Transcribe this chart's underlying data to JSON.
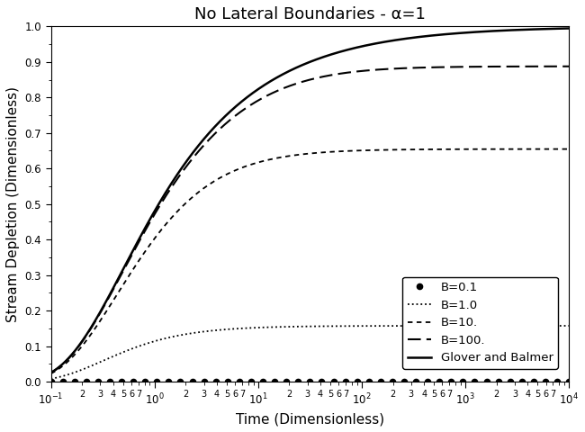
{
  "title": "No Lateral Boundaries - α=1",
  "xlabel": "Time (Dimensionless)",
  "ylabel": "Stream Depletion (Dimensionless)",
  "xlim_log": [
    -1,
    4
  ],
  "ylim": [
    0.0,
    1.0
  ],
  "legend_labels": [
    "B=0.1",
    "B=1.0",
    "B=10.",
    "B=100.",
    "Glover and Balmer"
  ],
  "B_values": [
    0.1,
    1.0,
    10.0,
    100.0
  ],
  "background_color": "#ffffff",
  "line_color": "#000000",
  "title_fontsize": 13,
  "axis_label_fontsize": 11,
  "legend_fontsize": 9.5,
  "n_dots": 45
}
